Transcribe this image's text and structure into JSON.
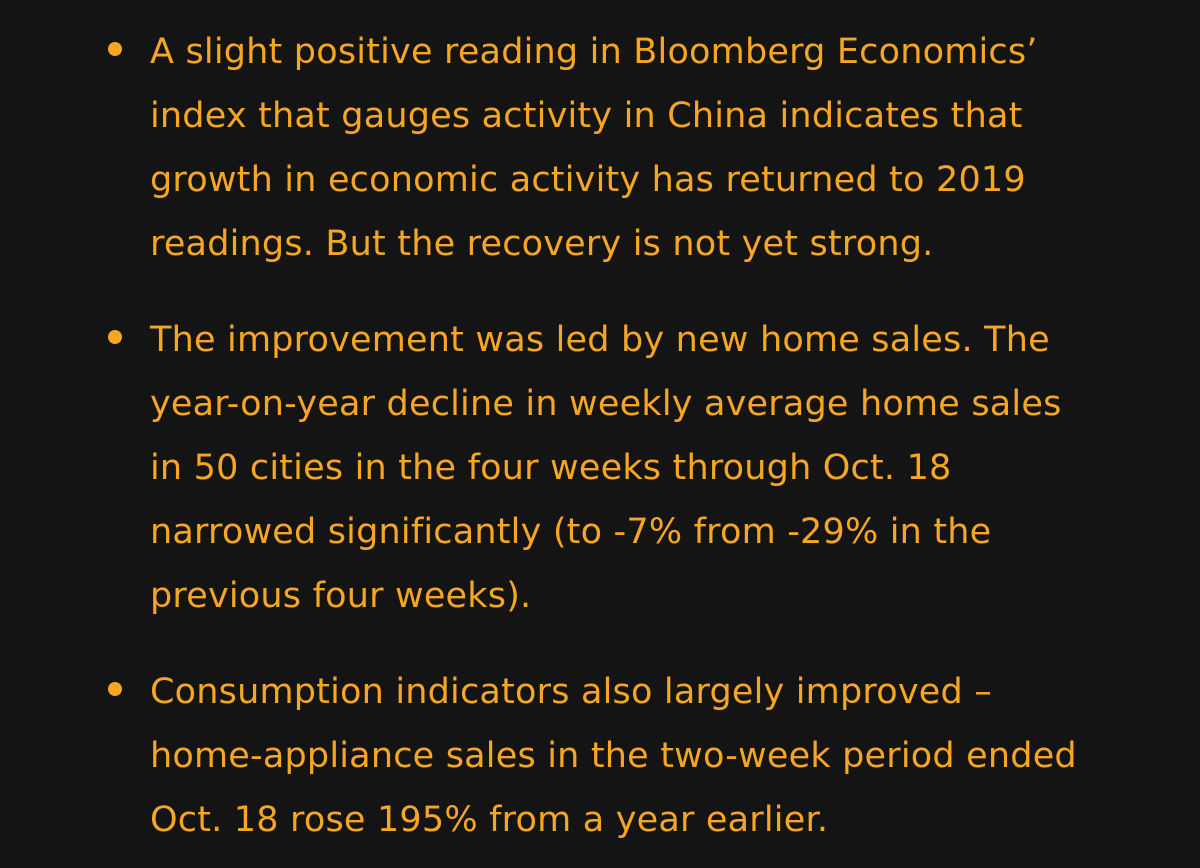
{
  "bullets": [
    {
      "lines": [
        "A slight positive reading in Bloomberg Economics’",
        "index that gauges activity in China indicates that",
        "growth in economic activity has returned to 2019",
        "readings. But the recovery is not yet strong."
      ]
    },
    {
      "lines": [
        "The improvement was led by new home sales. The",
        "year-on-year decline in weekly average home sales",
        "in 50 cities in the four weeks through Oct. 18",
        "narrowed significantly (to -7% from -29% in the",
        "previous four weeks)."
      ]
    },
    {
      "lines": [
        "Consumption indicators also largely improved –",
        "home-appliance sales in the two-week period ended",
        "Oct. 18 rose 195% from a year earlier."
      ]
    }
  ],
  "colors": {
    "background": "#141414",
    "text": "#f6a623"
  }
}
